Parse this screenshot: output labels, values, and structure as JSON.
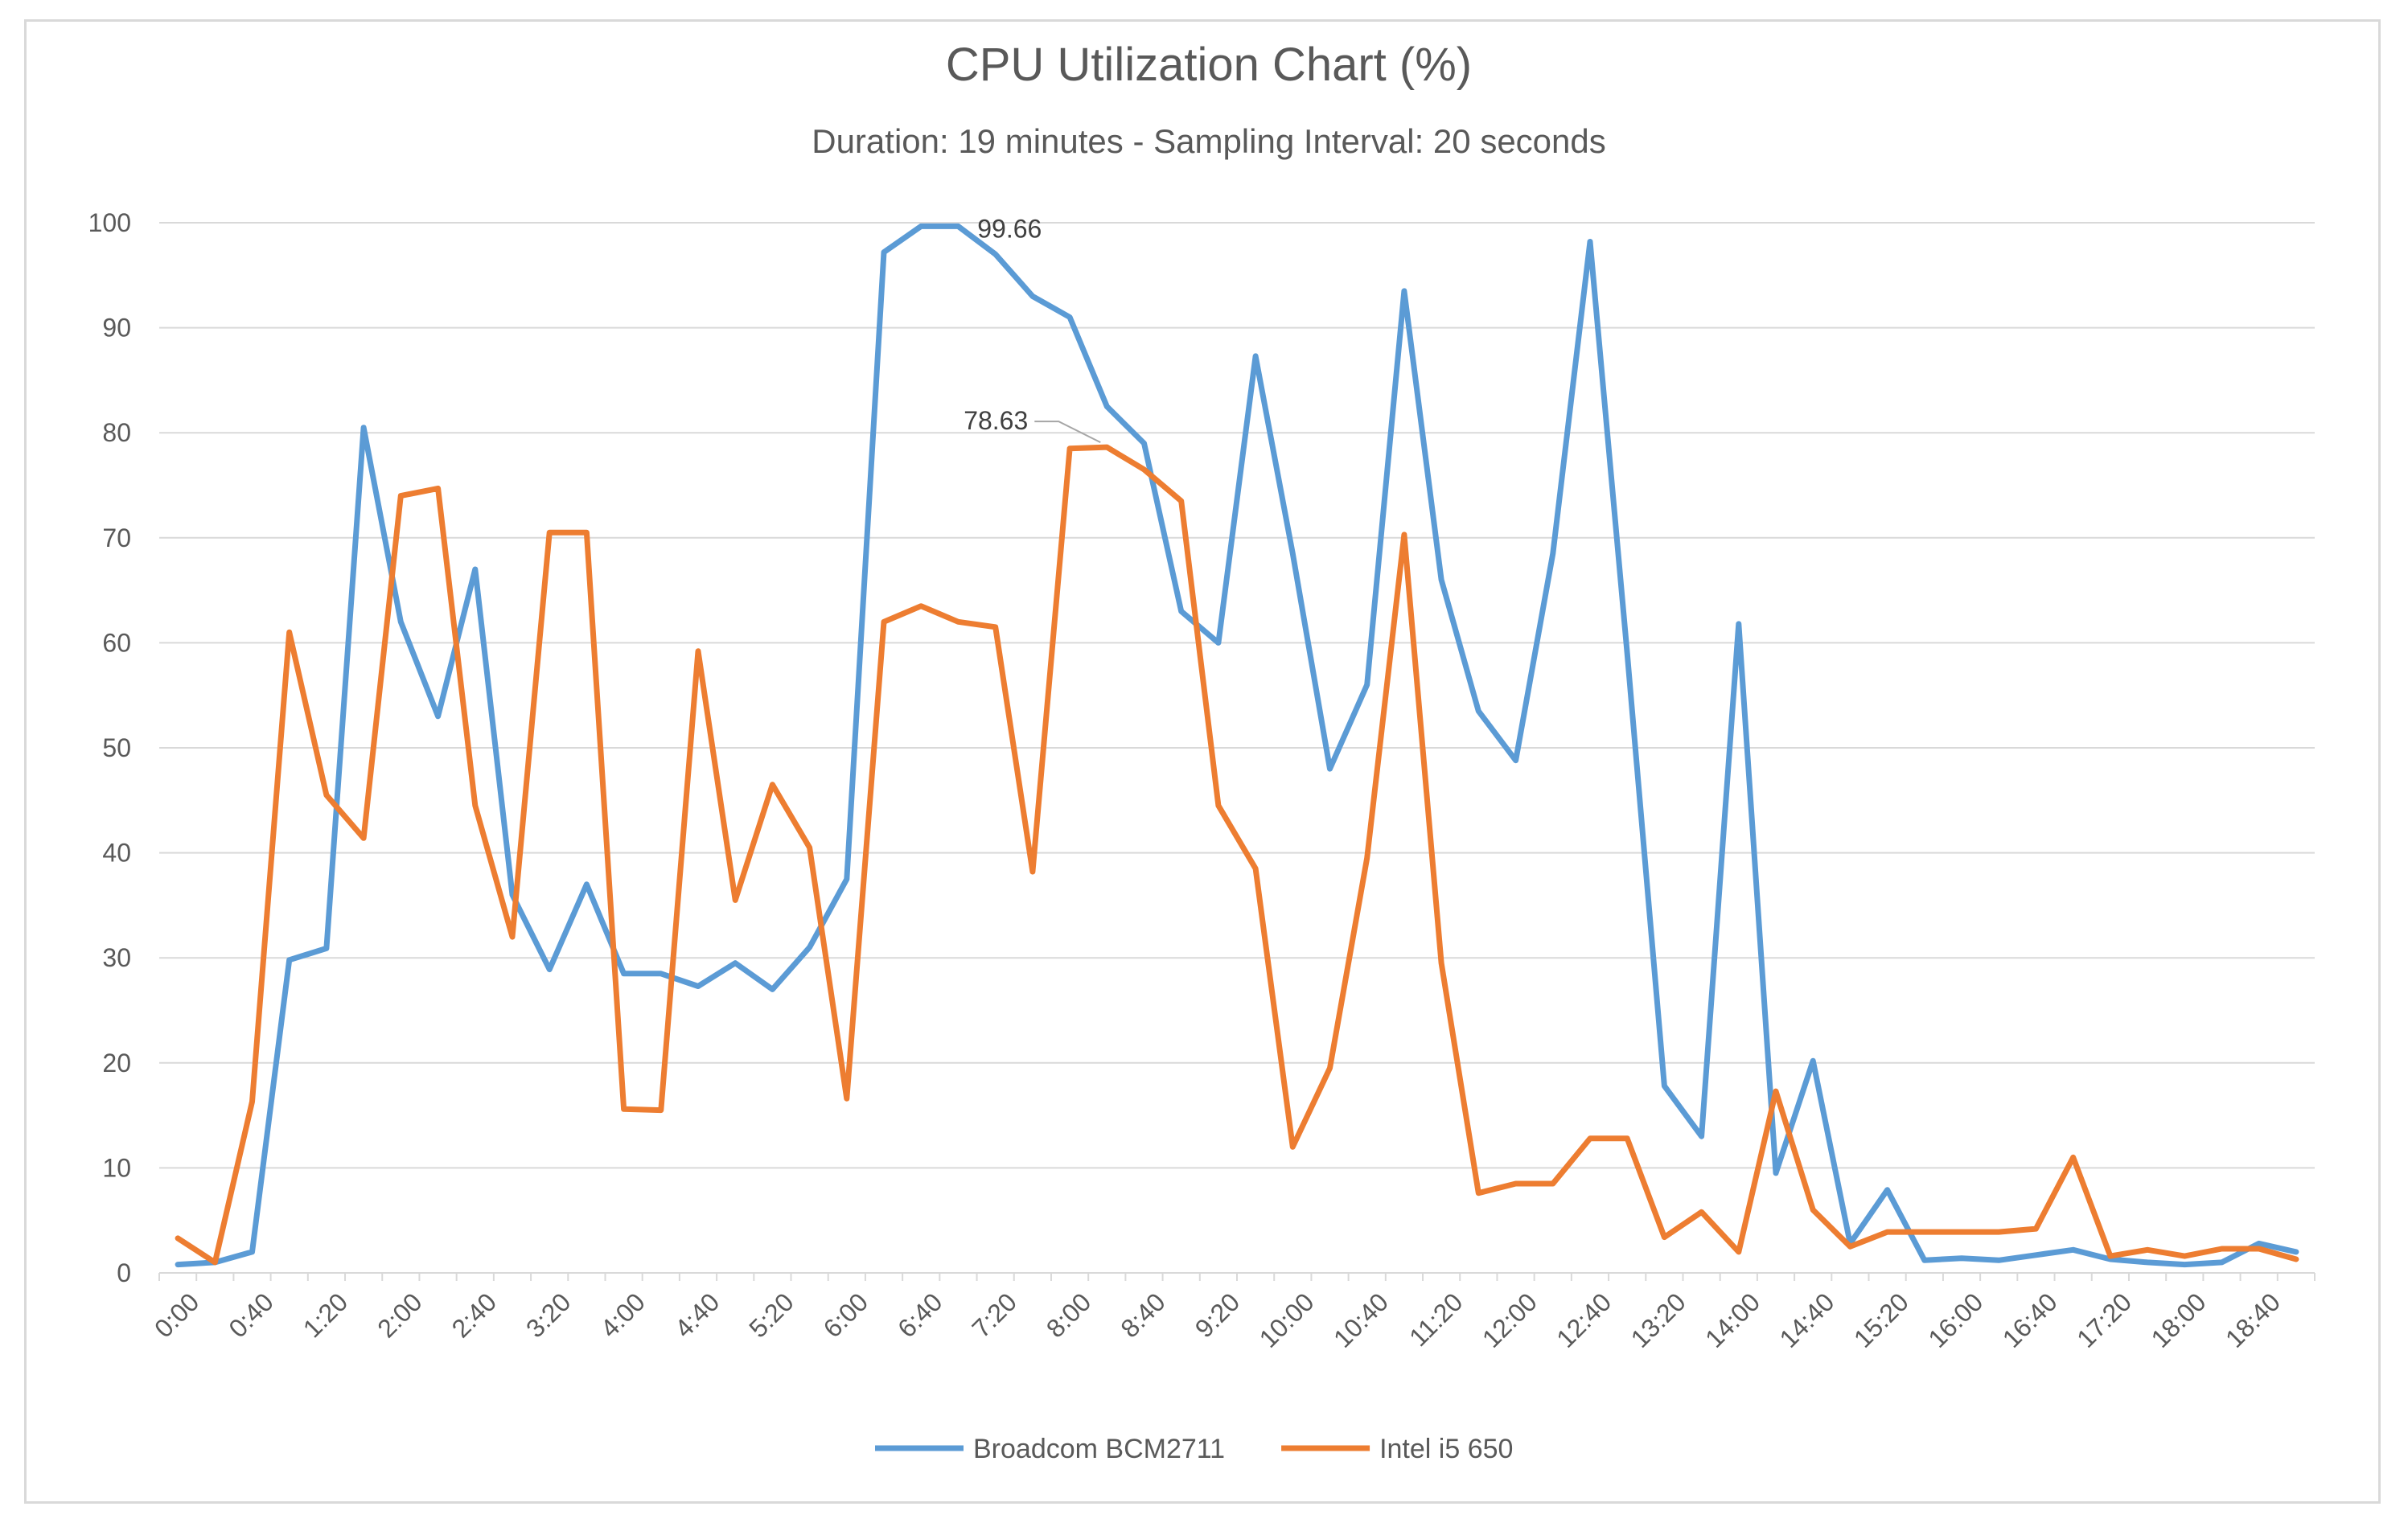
{
  "chart_data": {
    "type": "line",
    "title": "CPU Utilization Chart (%)",
    "subtitle": "Duration: 19 minutes - Sampling Interval: 20 seconds",
    "xlabel": "",
    "ylabel": "",
    "ylim": [
      0,
      100
    ],
    "yticks": [
      0,
      10,
      20,
      30,
      40,
      50,
      60,
      70,
      80,
      90,
      100
    ],
    "grid": true,
    "legend_position": "bottom",
    "x": [
      "0:00",
      "0:20",
      "0:40",
      "1:00",
      "1:20",
      "1:40",
      "2:00",
      "2:20",
      "2:40",
      "3:00",
      "3:20",
      "3:40",
      "4:00",
      "4:20",
      "4:40",
      "5:00",
      "5:20",
      "5:40",
      "6:00",
      "6:20",
      "6:40",
      "7:00",
      "7:20",
      "7:40",
      "8:00",
      "8:20",
      "8:40",
      "9:00",
      "9:20",
      "9:40",
      "10:00",
      "10:20",
      "10:40",
      "11:00",
      "11:20",
      "11:40",
      "12:00",
      "12:20",
      "12:40",
      "13:00",
      "13:20",
      "13:40",
      "14:00",
      "14:20",
      "14:40",
      "15:00",
      "15:20",
      "15:40",
      "16:00",
      "16:20",
      "16:40",
      "17:00",
      "17:20",
      "17:40",
      "18:00",
      "18:20",
      "18:40",
      "19:00"
    ],
    "x_tick_labels": [
      "0:00",
      "0:40",
      "1:20",
      "2:00",
      "2:40",
      "3:20",
      "4:00",
      "4:40",
      "5:20",
      "6:00",
      "6:40",
      "7:20",
      "8:00",
      "8:40",
      "9:20",
      "10:00",
      "10:40",
      "11:20",
      "12:00",
      "12:40",
      "13:20",
      "14:00",
      "14:40",
      "15:20",
      "16:00",
      "16:40",
      "17:20",
      "18:00",
      "18:40"
    ],
    "series": [
      {
        "name": "Broadcom BCM2711",
        "color": "#5b9bd5",
        "values": [
          0.8,
          1.0,
          2.0,
          29.8,
          30.9,
          80.5,
          62.0,
          53.0,
          67.0,
          36.0,
          28.9,
          37.0,
          28.5,
          28.5,
          27.3,
          29.5,
          27.0,
          31.0,
          37.5,
          97.2,
          99.66,
          99.66,
          97.0,
          93.0,
          91.0,
          82.5,
          79.0,
          63.0,
          60.0,
          87.3,
          68.5,
          48.0,
          56.0,
          93.5,
          66.0,
          53.5,
          48.8,
          68.5,
          98.2,
          59.0,
          17.8,
          13.0,
          61.8,
          9.5,
          20.2,
          2.8,
          7.9,
          1.2,
          1.4,
          1.2,
          1.7,
          2.2,
          1.3,
          1.0,
          0.8,
          1.0,
          2.8,
          2.0
        ],
        "annotation": {
          "index": 20,
          "label": "99.66"
        }
      },
      {
        "name": "Intel i5 650",
        "color": "#ed7d31",
        "values": [
          3.3,
          1.0,
          16.3,
          61.0,
          45.5,
          41.4,
          74.0,
          74.7,
          44.5,
          32.0,
          70.5,
          70.5,
          15.6,
          15.5,
          59.2,
          35.5,
          46.5,
          40.5,
          16.6,
          62.0,
          63.5,
          62.0,
          61.5,
          38.2,
          78.5,
          78.63,
          76.5,
          73.5,
          44.5,
          38.5,
          12.0,
          19.5,
          39.5,
          70.3,
          29.5,
          7.6,
          8.5,
          8.5,
          12.8,
          12.8,
          3.4,
          5.8,
          2.0,
          17.3,
          6.0,
          2.5,
          3.9,
          3.9,
          3.9,
          3.9,
          4.2,
          11.0,
          1.6,
          2.2,
          1.6,
          2.3,
          2.3,
          1.3
        ],
        "annotation": {
          "index": 25,
          "label": "78.63"
        }
      }
    ]
  }
}
